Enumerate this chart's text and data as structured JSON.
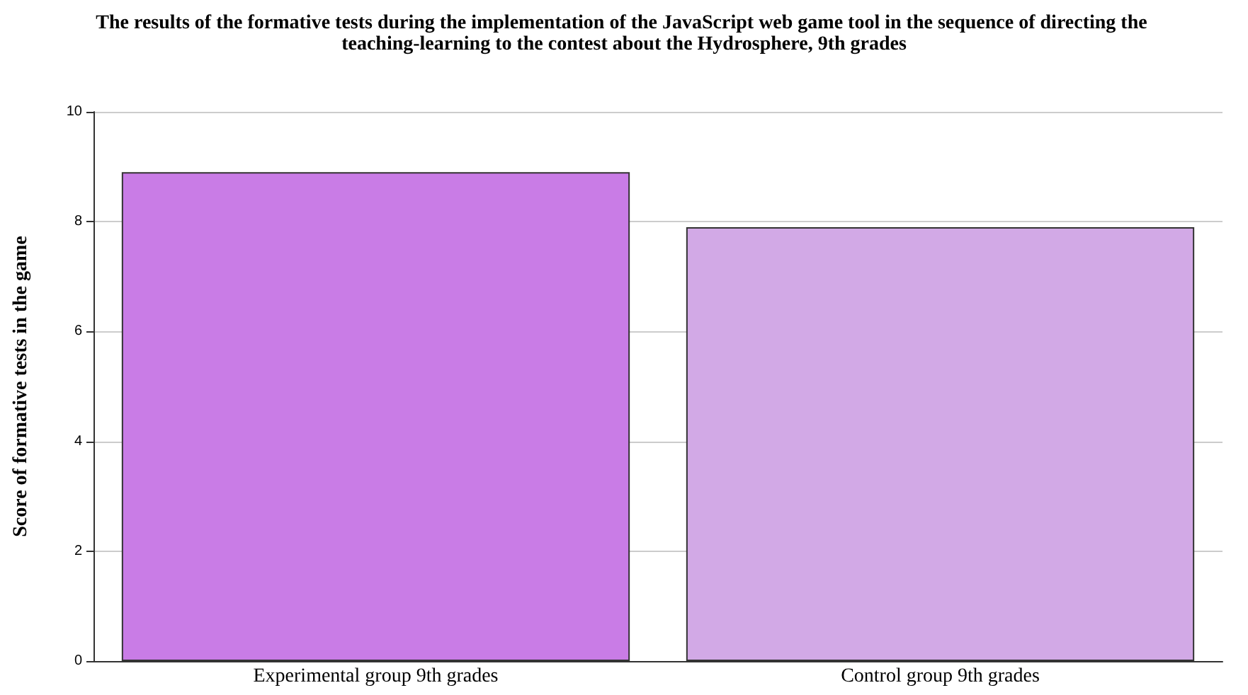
{
  "chart_data": {
    "type": "bar",
    "title": "The results of the formative tests during the implementation of the JavaScript web game tool in the sequence of directing the teaching-learning to the contest about the Hydrosphere, 9th grades",
    "ylabel": "Score of formative tests in the game",
    "categories": [
      "Experimental group 9th grades",
      "Control group 9th grades"
    ],
    "values": [
      8.9,
      7.9
    ],
    "colors": [
      "#c97ce6",
      "#d2a9e6"
    ],
    "ylim": [
      0,
      10
    ],
    "yticks": [
      0,
      2,
      4,
      6,
      8,
      10
    ],
    "grid": "y"
  }
}
